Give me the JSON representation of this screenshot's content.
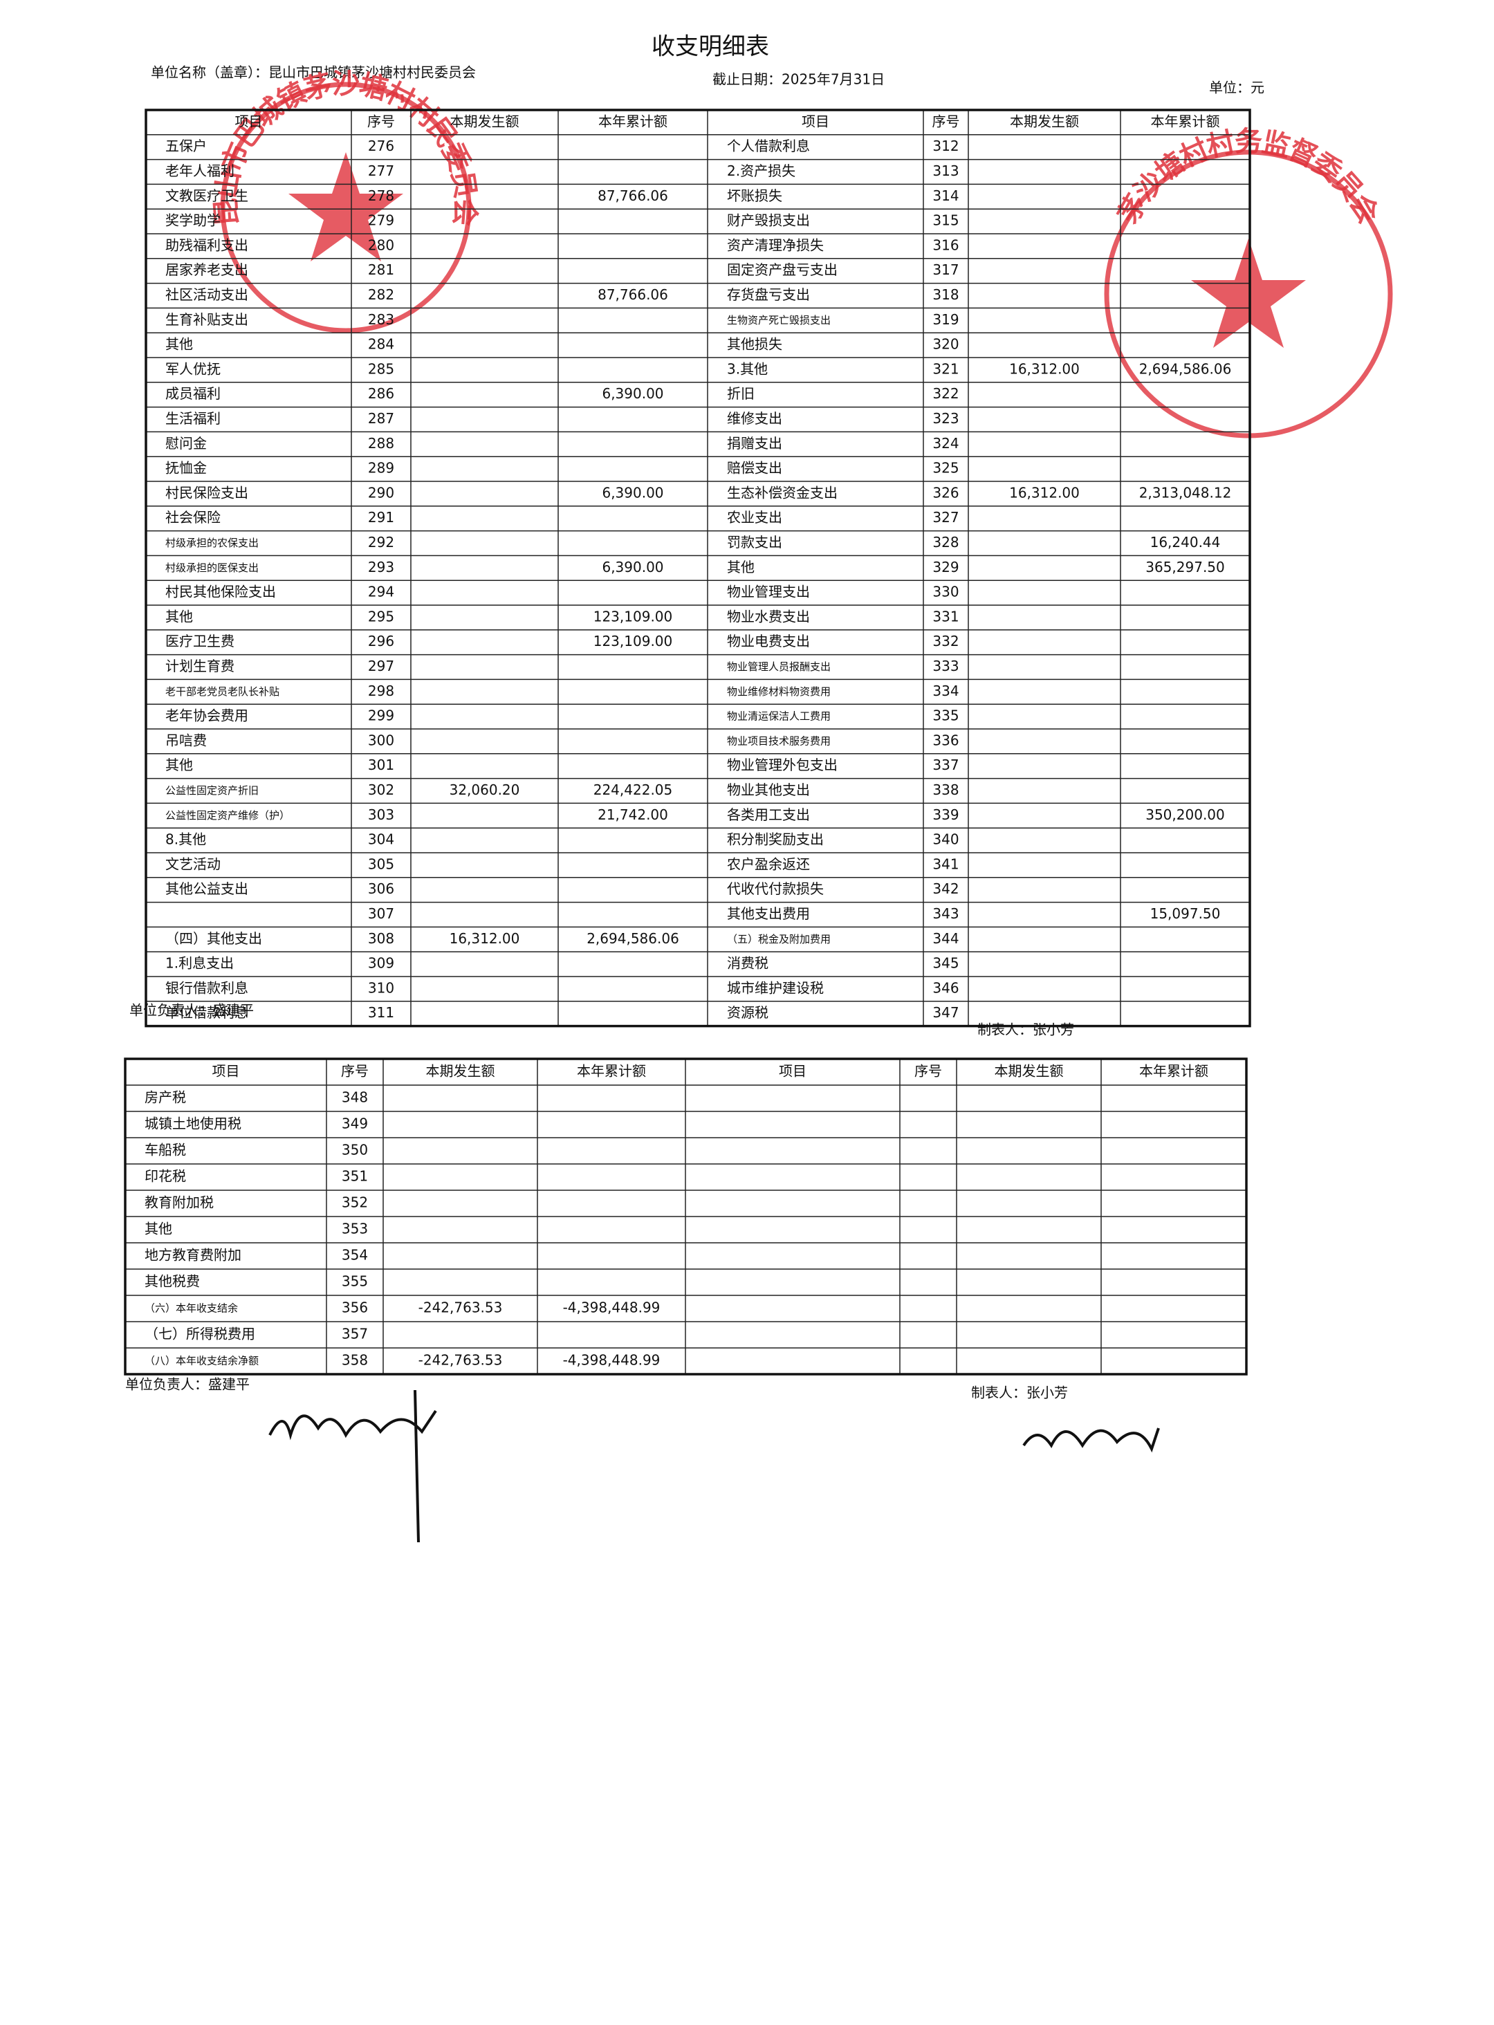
{
  "header": {
    "title": "收支明细表",
    "unit_name": "单位名称（盖章）：昆山市巴城镇茅沙塘村村民委员会",
    "date": "截止日期：2025年7月31日",
    "unit": "单位：元"
  },
  "stamps": [
    "昆山市巴城镇茅沙塘村村民委员会",
    "茅沙塘村村务监督委员会"
  ],
  "table1": {
    "headers": [
      "项目",
      "序号",
      "本期发生额",
      "本年累计额",
      "项目",
      "序号",
      "本期发生额",
      "本年累计额"
    ],
    "rows": [
      {
        "left": {
          "item": "五保户",
          "no": 276
        },
        "right": {
          "item": "个人借款利息",
          "no": 312
        }
      },
      {
        "left": {
          "item": "老年人福利",
          "no": 277
        },
        "right": {
          "item": "2.资产损失",
          "no": 313
        }
      },
      {
        "left": {
          "item": "文教医疗卫生",
          "no": 278,
          "ytd": "87,766.06"
        },
        "right": {
          "item": "坏账损失",
          "no": 314
        }
      },
      {
        "left": {
          "item": "奖学助学",
          "no": 279
        },
        "right": {
          "item": "财产毁损支出",
          "no": 315
        }
      },
      {
        "left": {
          "item": "助残福利支出",
          "no": 280
        },
        "right": {
          "item": "资产清理净损失",
          "no": 316
        }
      },
      {
        "left": {
          "item": "居家养老支出",
          "no": 281
        },
        "right": {
          "item": "固定资产盘亏支出",
          "no": 317
        }
      },
      {
        "left": {
          "item": "社区活动支出",
          "no": 282,
          "ytd": "87,766.06"
        },
        "right": {
          "item": "存货盘亏支出",
          "no": 318
        }
      },
      {
        "left": {
          "item": "生育补贴支出",
          "no": 283
        },
        "right": {
          "item": "生物资产死亡毁损支出",
          "no": 319
        }
      },
      {
        "left": {
          "item": "其他",
          "no": 284
        },
        "right": {
          "item": "其他损失",
          "no": 320
        }
      },
      {
        "left": {
          "item": "军人优抚",
          "no": 285
        },
        "right": {
          "item": "3.其他",
          "no": 321,
          "current": "16,312.00",
          "ytd": "2,694,586.06"
        }
      },
      {
        "left": {
          "item": "成员福利",
          "no": 286,
          "ytd": "6,390.00"
        },
        "right": {
          "item": "折旧",
          "no": 322
        }
      },
      {
        "left": {
          "item": "生活福利",
          "no": 287
        },
        "right": {
          "item": "维修支出",
          "no": 323
        }
      },
      {
        "left": {
          "item": "慰问金",
          "no": 288
        },
        "right": {
          "item": "捐赠支出",
          "no": 324
        }
      },
      {
        "left": {
          "item": "抚恤金",
          "no": 289
        },
        "right": {
          "item": "赔偿支出",
          "no": 325
        }
      },
      {
        "left": {
          "item": "村民保险支出",
          "no": 290,
          "ytd": "6,390.00"
        },
        "right": {
          "item": "生态补偿资金支出",
          "no": 326,
          "current": "16,312.00",
          "ytd": "2,313,048.12"
        }
      },
      {
        "left": {
          "item": "社会保险",
          "no": 291
        },
        "right": {
          "item": "农业支出",
          "no": 327
        }
      },
      {
        "left": {
          "item": "村级承担的农保支出",
          "no": 292
        },
        "right": {
          "item": "罚款支出",
          "no": 328,
          "ytd": "16,240.44"
        }
      },
      {
        "left": {
          "item": "村级承担的医保支出",
          "no": 293,
          "ytd": "6,390.00"
        },
        "right": {
          "item": "其他",
          "no": 329,
          "ytd": "365,297.50"
        }
      },
      {
        "left": {
          "item": "村民其他保险支出",
          "no": 294
        },
        "right": {
          "item": "物业管理支出",
          "no": 330
        }
      },
      {
        "left": {
          "item": "其他",
          "no": 295,
          "ytd": "123,109.00"
        },
        "right": {
          "item": "物业水费支出",
          "no": 331
        }
      },
      {
        "left": {
          "item": "医疗卫生费",
          "no": 296,
          "ytd": "123,109.00"
        },
        "right": {
          "item": "物业电费支出",
          "no": 332
        }
      },
      {
        "left": {
          "item": "计划生育费",
          "no": 297
        },
        "right": {
          "item": "物业管理人员报酬支出",
          "no": 333
        }
      },
      {
        "left": {
          "item": "老干部老党员老队长补贴",
          "no": 298
        },
        "right": {
          "item": "物业维修材料物资费用",
          "no": 334
        }
      },
      {
        "left": {
          "item": "老年协会费用",
          "no": 299
        },
        "right": {
          "item": "物业清运保洁人工费用",
          "no": 335
        }
      },
      {
        "left": {
          "item": "吊唁费",
          "no": 300
        },
        "right": {
          "item": "物业项目技术服务费用",
          "no": 336
        }
      },
      {
        "left": {
          "item": "其他",
          "no": 301
        },
        "right": {
          "item": "物业管理外包支出",
          "no": 337
        }
      },
      {
        "left": {
          "item": "公益性固定资产折旧",
          "no": 302,
          "current": "32,060.20",
          "ytd": "224,422.05"
        },
        "right": {
          "item": "物业其他支出",
          "no": 338
        }
      },
      {
        "left": {
          "item": "公益性固定资产维修（护）",
          "no": 303,
          "ytd": "21,742.00"
        },
        "right": {
          "item": "各类用工支出",
          "no": 339,
          "ytd": "350,200.00"
        }
      },
      {
        "left": {
          "item": "8.其他",
          "no": 304
        },
        "right": {
          "item": "积分制奖励支出",
          "no": 340
        }
      },
      {
        "left": {
          "item": "文艺活动",
          "no": 305
        },
        "right": {
          "item": "农户盈余返还",
          "no": 341
        }
      },
      {
        "left": {
          "item": "其他公益支出",
          "no": 306
        },
        "right": {
          "item": "代收代付款损失",
          "no": 342
        }
      },
      {
        "left": {
          "no": 307
        },
        "right": {
          "item": "其他支出费用",
          "no": 343,
          "ytd": "15,097.50"
        }
      },
      {
        "left": {
          "item": "（四）其他支出",
          "no": 308,
          "current": "16,312.00",
          "ytd": "2,694,586.06"
        },
        "right": {
          "item": "（五）税金及附加费用",
          "no": 344
        }
      },
      {
        "left": {
          "item": "1.利息支出",
          "no": 309
        },
        "right": {
          "item": "消费税",
          "no": 345
        }
      },
      {
        "left": {
          "item": "银行借款利息",
          "no": 310
        },
        "right": {
          "item": "城市维护建设税",
          "no": 346
        }
      },
      {
        "left": {
          "item": "单位借款利息",
          "no": 311
        },
        "right": {
          "item": "资源税",
          "no": 347
        }
      }
    ],
    "footer": {
      "head": "单位负责人：盛建平",
      "maker": "制表人：张小芳"
    }
  },
  "table2": {
    "headers": [
      "项目",
      "序号",
      "本期发生额",
      "本年累计额",
      "项目",
      "序号",
      "本期发生额",
      "本年累计额"
    ],
    "rows": [
      {
        "item": "房产税",
        "no": 348
      },
      {
        "item": "城镇土地使用税",
        "no": 349
      },
      {
        "item": "车船税",
        "no": 350
      },
      {
        "item": "印花税",
        "no": 351
      },
      {
        "item": "教育附加税",
        "no": 352
      },
      {
        "item": "其他",
        "no": 353
      },
      {
        "item": "地方教育费附加",
        "no": 354
      },
      {
        "item": "其他税费",
        "no": 355
      },
      {
        "item": "（六）本年收支结余",
        "no": 356,
        "current": "-242,763.53",
        "ytd": "-4,398,448.99"
      },
      {
        "item": "（七）所得税费用",
        "no": 357
      },
      {
        "item": "（八）本年收支结余净额",
        "no": 358,
        "current": "-242,763.53",
        "ytd": "-4,398,448.99"
      }
    ],
    "footer": {
      "head": "单位负责人：盛建平",
      "maker": "制表人：张小芳"
    }
  }
}
